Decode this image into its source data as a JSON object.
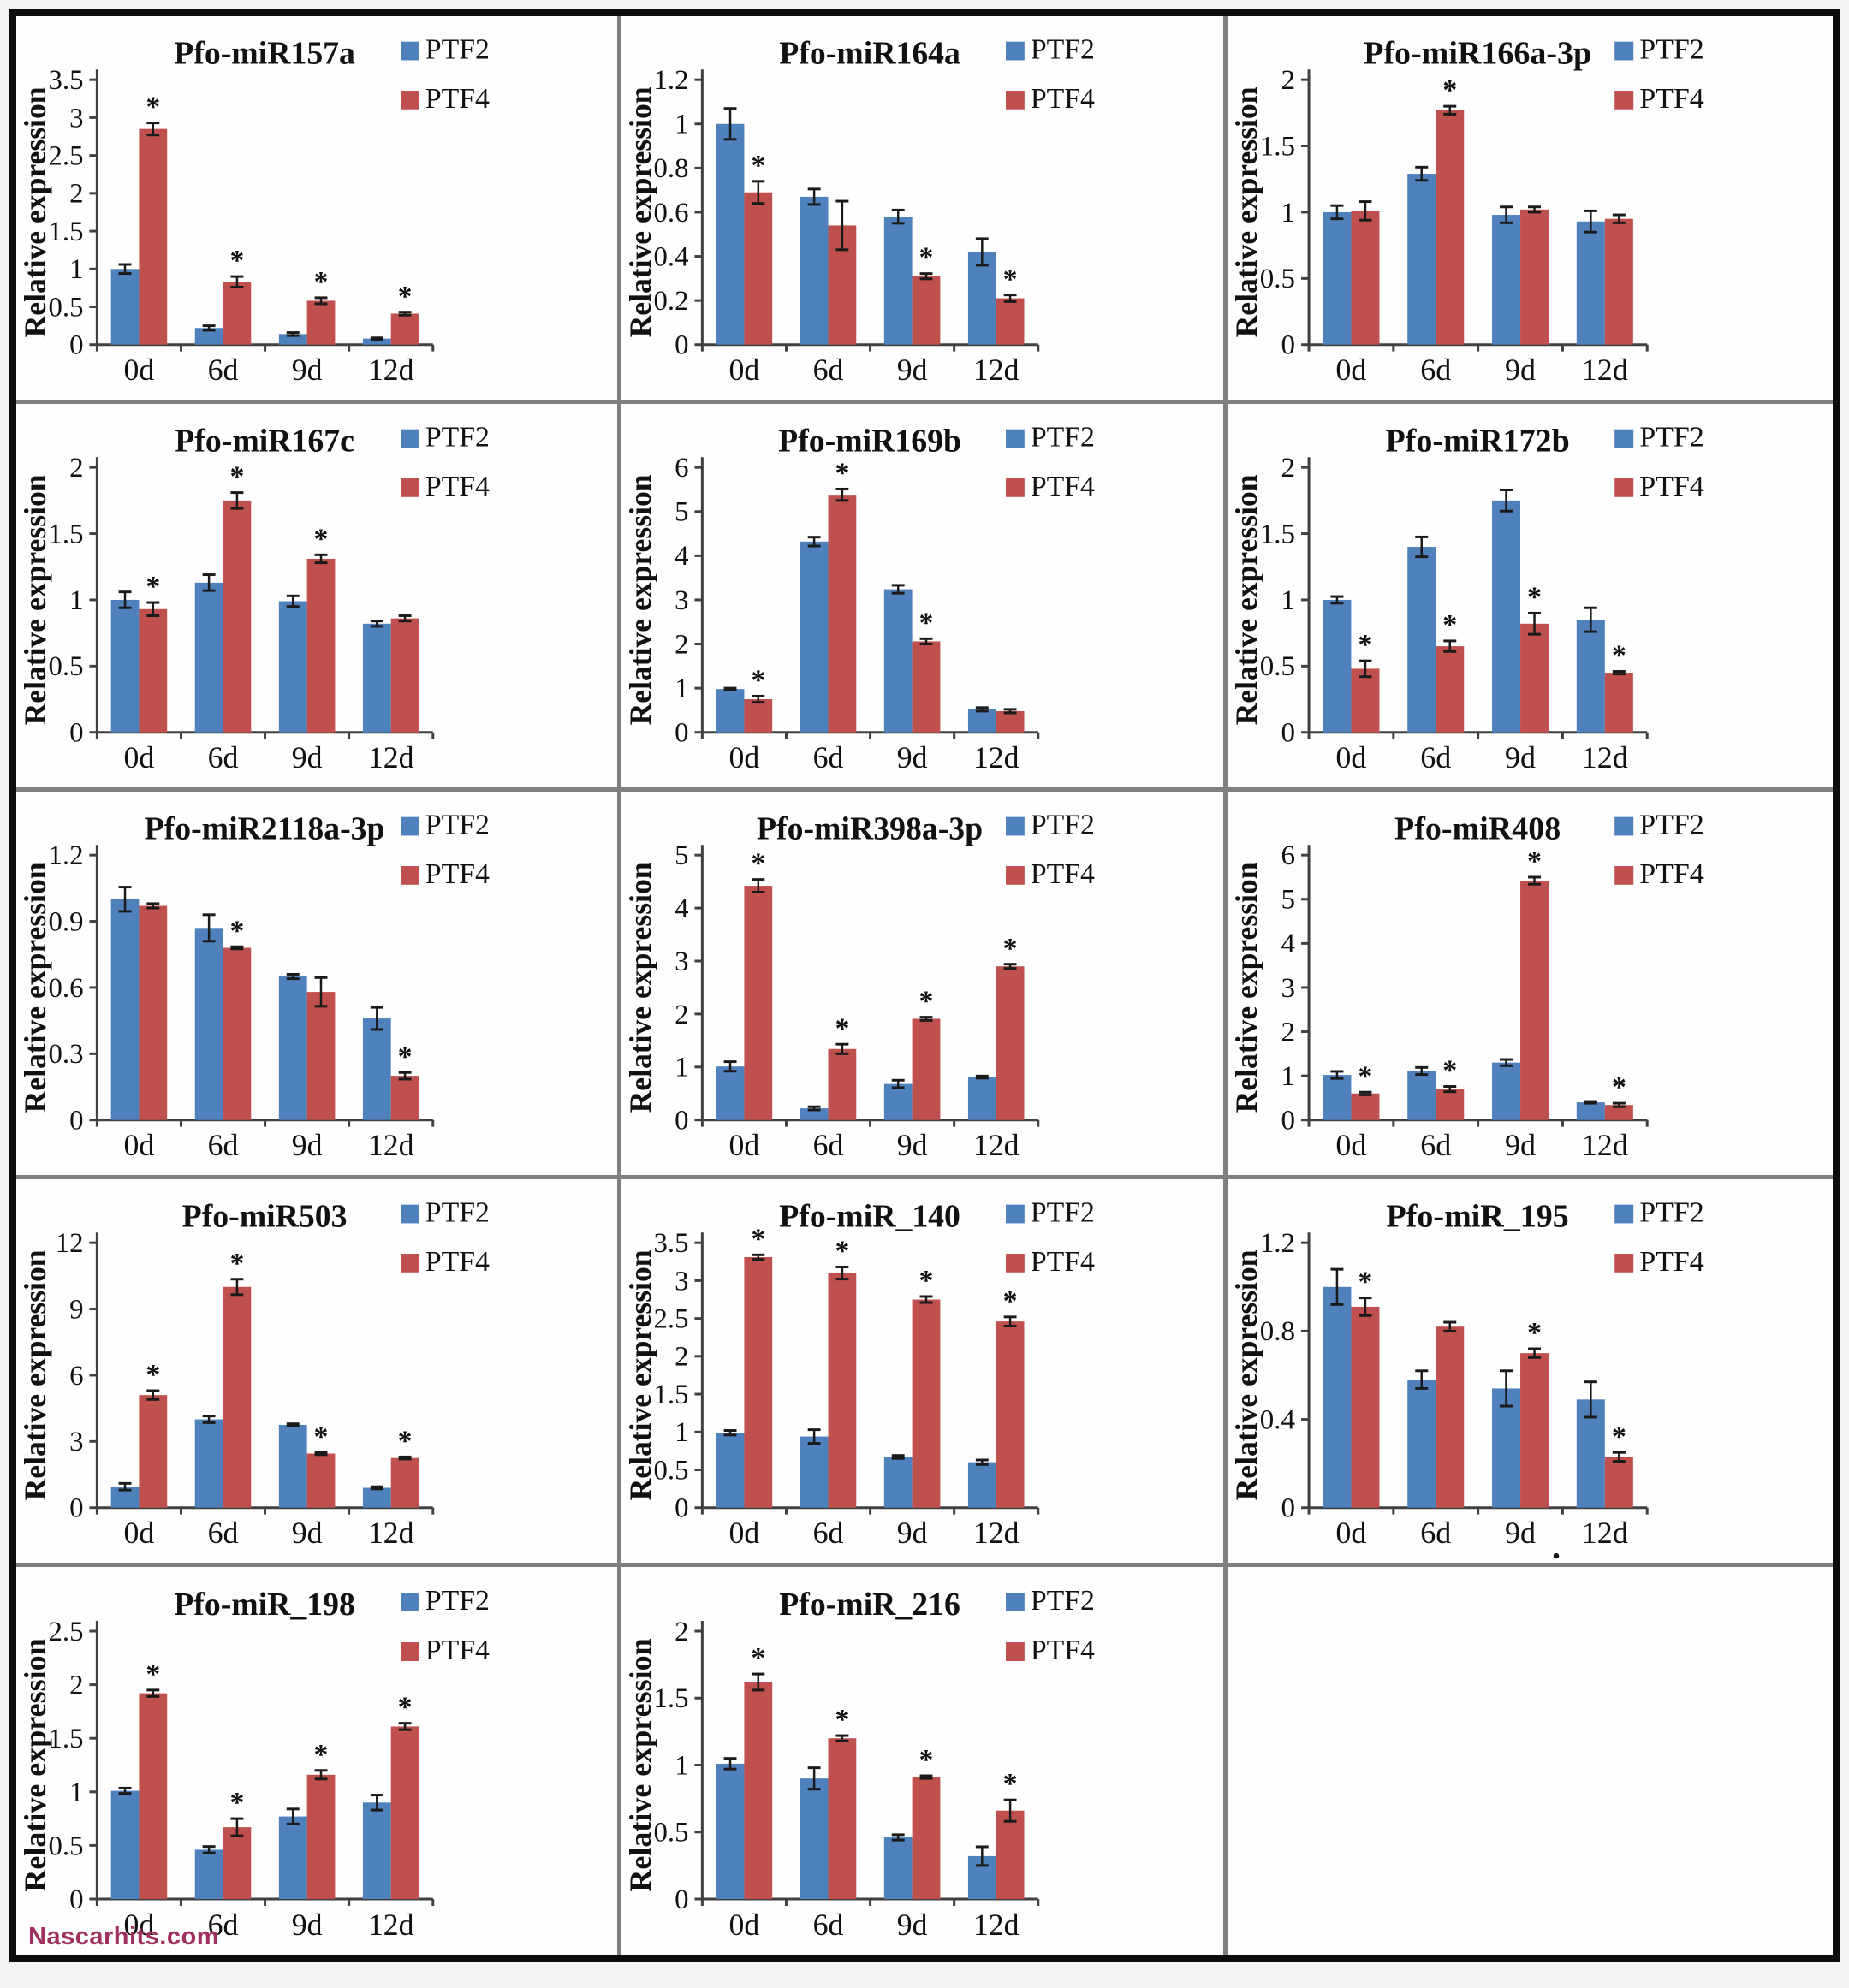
{
  "figure": {
    "watermark": "Nascarhits.com",
    "ylabel": "Relative expression",
    "categories": [
      "0d",
      "6d",
      "9d",
      "12d"
    ],
    "legend": [
      "PTF2",
      "PTF4"
    ],
    "colors": {
      "ptf2": "#4f81bd",
      "ptf4": "#c0504d",
      "axis": "#404040",
      "error_bar": "#1a1a1a",
      "text": "#111111",
      "panel_border": "#0d0d0d",
      "separator": "#7f7f7f",
      "watermark": "#a03060",
      "background": "#ffffff"
    }
  },
  "chart_data": [
    {
      "type": "bar",
      "title": "Pfo-miR157a",
      "ylabel": "Relative expression",
      "categories": [
        "0d",
        "6d",
        "9d",
        "12d"
      ],
      "yticks": [
        0,
        0.5,
        1,
        1.5,
        2,
        2.5,
        3,
        3.5
      ],
      "ylim": [
        0,
        3.5
      ],
      "legend_position": "top-right",
      "series": [
        {
          "name": "PTF2",
          "values": [
            1.0,
            0.22,
            0.14,
            0.08
          ],
          "errors": [
            0.06,
            0.03,
            0.02,
            0.01
          ],
          "sig": [
            false,
            false,
            false,
            false
          ]
        },
        {
          "name": "PTF4",
          "values": [
            2.85,
            0.83,
            0.58,
            0.41
          ],
          "errors": [
            0.08,
            0.07,
            0.04,
            0.02
          ],
          "sig": [
            true,
            true,
            true,
            true
          ]
        }
      ]
    },
    {
      "type": "bar",
      "title": "Pfo-miR164a",
      "ylabel": "Relative expression",
      "categories": [
        "0d",
        "6d",
        "9d",
        "12d"
      ],
      "yticks": [
        0,
        0.2,
        0.4,
        0.6,
        0.8,
        1,
        1.2
      ],
      "ylim": [
        0,
        1.2
      ],
      "legend_position": "top-right",
      "series": [
        {
          "name": "PTF2",
          "values": [
            1.0,
            0.67,
            0.58,
            0.42
          ],
          "errors": [
            0.07,
            0.035,
            0.03,
            0.06
          ],
          "sig": [
            false,
            false,
            false,
            false
          ]
        },
        {
          "name": "PTF4",
          "values": [
            0.69,
            0.54,
            0.31,
            0.21
          ],
          "errors": [
            0.05,
            0.11,
            0.012,
            0.015
          ],
          "sig": [
            true,
            false,
            true,
            true
          ]
        }
      ]
    },
    {
      "type": "bar",
      "title": "Pfo-miR166a-3p",
      "ylabel": "Relative expression",
      "categories": [
        "0d",
        "6d",
        "9d",
        "12d"
      ],
      "yticks": [
        0,
        0.5,
        1,
        1.5,
        2
      ],
      "ylim": [
        0,
        2
      ],
      "legend_position": "top-right",
      "series": [
        {
          "name": "PTF2",
          "values": [
            1.0,
            1.29,
            0.98,
            0.93
          ],
          "errors": [
            0.05,
            0.05,
            0.06,
            0.08
          ],
          "sig": [
            false,
            false,
            false,
            false
          ]
        },
        {
          "name": "PTF4",
          "values": [
            1.01,
            1.77,
            1.02,
            0.95
          ],
          "errors": [
            0.07,
            0.03,
            0.02,
            0.03
          ],
          "sig": [
            false,
            true,
            false,
            false
          ]
        }
      ]
    },
    {
      "type": "bar",
      "title": "Pfo-miR167c",
      "ylabel": "Relative expression",
      "categories": [
        "0d",
        "6d",
        "9d",
        "12d"
      ],
      "yticks": [
        0,
        0.5,
        1,
        1.5,
        2
      ],
      "ylim": [
        0,
        2
      ],
      "legend_position": "top-right",
      "series": [
        {
          "name": "PTF2",
          "values": [
            1.0,
            1.13,
            0.99,
            0.82
          ],
          "errors": [
            0.06,
            0.06,
            0.04,
            0.02
          ],
          "sig": [
            false,
            false,
            false,
            false
          ]
        },
        {
          "name": "PTF4",
          "values": [
            0.93,
            1.75,
            1.31,
            0.86
          ],
          "errors": [
            0.05,
            0.06,
            0.03,
            0.02
          ],
          "sig": [
            true,
            true,
            true,
            false
          ]
        }
      ]
    },
    {
      "type": "bar",
      "title": "Pfo-miR169b",
      "ylabel": "Relative expression",
      "categories": [
        "0d",
        "6d",
        "9d",
        "12d"
      ],
      "yticks": [
        0,
        1,
        2,
        3,
        4,
        5,
        6
      ],
      "ylim": [
        0,
        6
      ],
      "legend_position": "top-right",
      "series": [
        {
          "name": "PTF2",
          "values": [
            0.98,
            4.32,
            3.24,
            0.52
          ],
          "errors": [
            0.02,
            0.1,
            0.09,
            0.04
          ],
          "sig": [
            false,
            false,
            false,
            false
          ]
        },
        {
          "name": "PTF4",
          "values": [
            0.75,
            5.38,
            2.06,
            0.48
          ],
          "errors": [
            0.07,
            0.13,
            0.06,
            0.04
          ],
          "sig": [
            true,
            true,
            true,
            false
          ]
        }
      ]
    },
    {
      "type": "bar",
      "title": "Pfo-miR172b",
      "ylabel": "Relative expression",
      "categories": [
        "0d",
        "6d",
        "9d",
        "12d"
      ],
      "yticks": [
        0,
        0.5,
        1,
        1.5,
        2
      ],
      "ylim": [
        0,
        2
      ],
      "legend_position": "top-right",
      "series": [
        {
          "name": "PTF2",
          "values": [
            1.0,
            1.4,
            1.75,
            0.85
          ],
          "errors": [
            0.025,
            0.075,
            0.08,
            0.09
          ],
          "sig": [
            false,
            false,
            false,
            false
          ]
        },
        {
          "name": "PTF4",
          "values": [
            0.48,
            0.65,
            0.82,
            0.45
          ],
          "errors": [
            0.06,
            0.04,
            0.08,
            0.01
          ],
          "sig": [
            true,
            true,
            true,
            true
          ]
        }
      ]
    },
    {
      "type": "bar",
      "title": "Pfo-miR2118a-3p",
      "ylabel": "Relative expression",
      "categories": [
        "0d",
        "6d",
        "9d",
        "12d"
      ],
      "yticks": [
        0,
        0.3,
        0.6,
        0.9,
        1.2
      ],
      "ylim": [
        0,
        1.2
      ],
      "legend_position": "top-right",
      "series": [
        {
          "name": "PTF2",
          "values": [
            1.0,
            0.87,
            0.65,
            0.46
          ],
          "errors": [
            0.055,
            0.06,
            0.01,
            0.05
          ],
          "sig": [
            false,
            false,
            false,
            false
          ]
        },
        {
          "name": "PTF4",
          "values": [
            0.97,
            0.78,
            0.58,
            0.2
          ],
          "errors": [
            0.01,
            0.005,
            0.065,
            0.015
          ],
          "sig": [
            false,
            true,
            false,
            true
          ]
        }
      ]
    },
    {
      "type": "bar",
      "title": "Pfo-miR398a-3p",
      "ylabel": "Relative expression",
      "categories": [
        "0d",
        "6d",
        "9d",
        "12d"
      ],
      "yticks": [
        0,
        1,
        2,
        3,
        4,
        5
      ],
      "ylim": [
        0,
        5
      ],
      "legend_position": "top-right",
      "series": [
        {
          "name": "PTF2",
          "values": [
            1.01,
            0.22,
            0.68,
            0.81
          ],
          "errors": [
            0.09,
            0.03,
            0.07,
            0.02
          ],
          "sig": [
            false,
            false,
            false,
            false
          ]
        },
        {
          "name": "PTF4",
          "values": [
            4.42,
            1.34,
            1.91,
            2.9
          ],
          "errors": [
            0.12,
            0.09,
            0.03,
            0.04
          ],
          "sig": [
            true,
            true,
            true,
            true
          ]
        }
      ]
    },
    {
      "type": "bar",
      "title": "Pfo-miR408",
      "ylabel": "Relative expression",
      "categories": [
        "0d",
        "6d",
        "9d",
        "12d"
      ],
      "yticks": [
        0,
        1,
        2,
        3,
        4,
        5,
        6
      ],
      "ylim": [
        0,
        6
      ],
      "legend_position": "top-right",
      "series": [
        {
          "name": "PTF2",
          "values": [
            1.02,
            1.11,
            1.3,
            0.4
          ],
          "errors": [
            0.08,
            0.08,
            0.07,
            0.02
          ],
          "sig": [
            false,
            false,
            false,
            false
          ]
        },
        {
          "name": "PTF4",
          "values": [
            0.6,
            0.7,
            5.42,
            0.34
          ],
          "errors": [
            0.03,
            0.06,
            0.08,
            0.04
          ],
          "sig": [
            true,
            true,
            true,
            true
          ]
        }
      ]
    },
    {
      "type": "bar",
      "title": "Pfo-miR503",
      "ylabel": "Relative expression",
      "categories": [
        "0d",
        "6d",
        "9d",
        "12d"
      ],
      "yticks": [
        0,
        3,
        6,
        9,
        12
      ],
      "ylim": [
        0,
        12
      ],
      "legend_position": "top-right",
      "series": [
        {
          "name": "PTF2",
          "values": [
            0.95,
            4.0,
            3.75,
            0.9
          ],
          "errors": [
            0.15,
            0.15,
            0.05,
            0.05
          ],
          "sig": [
            false,
            false,
            false,
            false
          ]
        },
        {
          "name": "PTF4",
          "values": [
            5.1,
            10.0,
            2.45,
            2.25
          ],
          "errors": [
            0.2,
            0.35,
            0.05,
            0.05
          ],
          "sig": [
            true,
            true,
            true,
            true
          ]
        }
      ]
    },
    {
      "type": "bar",
      "title": "Pfo-miR_140",
      "ylabel": "Relative expression",
      "categories": [
        "0d",
        "6d",
        "9d",
        "12d"
      ],
      "yticks": [
        0,
        0.5,
        1,
        1.5,
        2,
        2.5,
        3,
        3.5
      ],
      "ylim": [
        0,
        3.5
      ],
      "legend_position": "top-right",
      "series": [
        {
          "name": "PTF2",
          "values": [
            0.99,
            0.94,
            0.67,
            0.6
          ],
          "errors": [
            0.03,
            0.09,
            0.02,
            0.03
          ],
          "sig": [
            false,
            false,
            false,
            false
          ]
        },
        {
          "name": "PTF4",
          "values": [
            3.31,
            3.1,
            2.75,
            2.46
          ],
          "errors": [
            0.03,
            0.08,
            0.04,
            0.06
          ],
          "sig": [
            true,
            true,
            true,
            true
          ]
        }
      ]
    },
    {
      "type": "bar",
      "title": "Pfo-miR_195",
      "ylabel": "Relative expression",
      "categories": [
        "0d",
        "6d",
        "9d",
        "12d"
      ],
      "yticks": [
        0,
        0.4,
        0.8,
        1.2
      ],
      "ylim": [
        0,
        1.2
      ],
      "legend_position": "top-right",
      "annotation_dot_below_category": 2,
      "series": [
        {
          "name": "PTF2",
          "values": [
            1.0,
            0.58,
            0.54,
            0.49
          ],
          "errors": [
            0.08,
            0.04,
            0.08,
            0.08
          ],
          "sig": [
            false,
            false,
            false,
            false
          ]
        },
        {
          "name": "PTF4",
          "values": [
            0.91,
            0.82,
            0.7,
            0.23
          ],
          "errors": [
            0.04,
            0.02,
            0.02,
            0.02
          ],
          "sig": [
            true,
            false,
            true,
            true
          ]
        }
      ]
    },
    {
      "type": "bar",
      "title": "Pfo-miR_198",
      "ylabel": "Relative expression",
      "categories": [
        "0d",
        "6d",
        "9d",
        "12d"
      ],
      "yticks": [
        0,
        0.5,
        1,
        1.5,
        2,
        2.5
      ],
      "ylim": [
        0,
        2.5
      ],
      "legend_position": "top-right",
      "series": [
        {
          "name": "PTF2",
          "values": [
            1.01,
            0.46,
            0.77,
            0.9
          ],
          "errors": [
            0.025,
            0.03,
            0.07,
            0.07
          ],
          "sig": [
            false,
            false,
            false,
            false
          ]
        },
        {
          "name": "PTF4",
          "values": [
            1.92,
            0.67,
            1.16,
            1.61
          ],
          "errors": [
            0.03,
            0.08,
            0.04,
            0.03
          ],
          "sig": [
            true,
            true,
            true,
            true
          ]
        }
      ]
    },
    {
      "type": "bar",
      "title": "Pfo-miR_216",
      "ylabel": "Relative expression",
      "categories": [
        "0d",
        "6d",
        "9d",
        "12d"
      ],
      "yticks": [
        0,
        0.5,
        1,
        1.5,
        2
      ],
      "ylim": [
        0,
        2
      ],
      "legend_position": "top-right",
      "series": [
        {
          "name": "PTF2",
          "values": [
            1.01,
            0.9,
            0.46,
            0.32
          ],
          "errors": [
            0.04,
            0.08,
            0.02,
            0.07
          ],
          "sig": [
            false,
            false,
            false,
            false
          ]
        },
        {
          "name": "PTF4",
          "values": [
            1.62,
            1.2,
            0.91,
            0.66
          ],
          "errors": [
            0.06,
            0.02,
            0.01,
            0.08
          ],
          "sig": [
            true,
            true,
            true,
            true
          ]
        }
      ]
    },
    null
  ]
}
